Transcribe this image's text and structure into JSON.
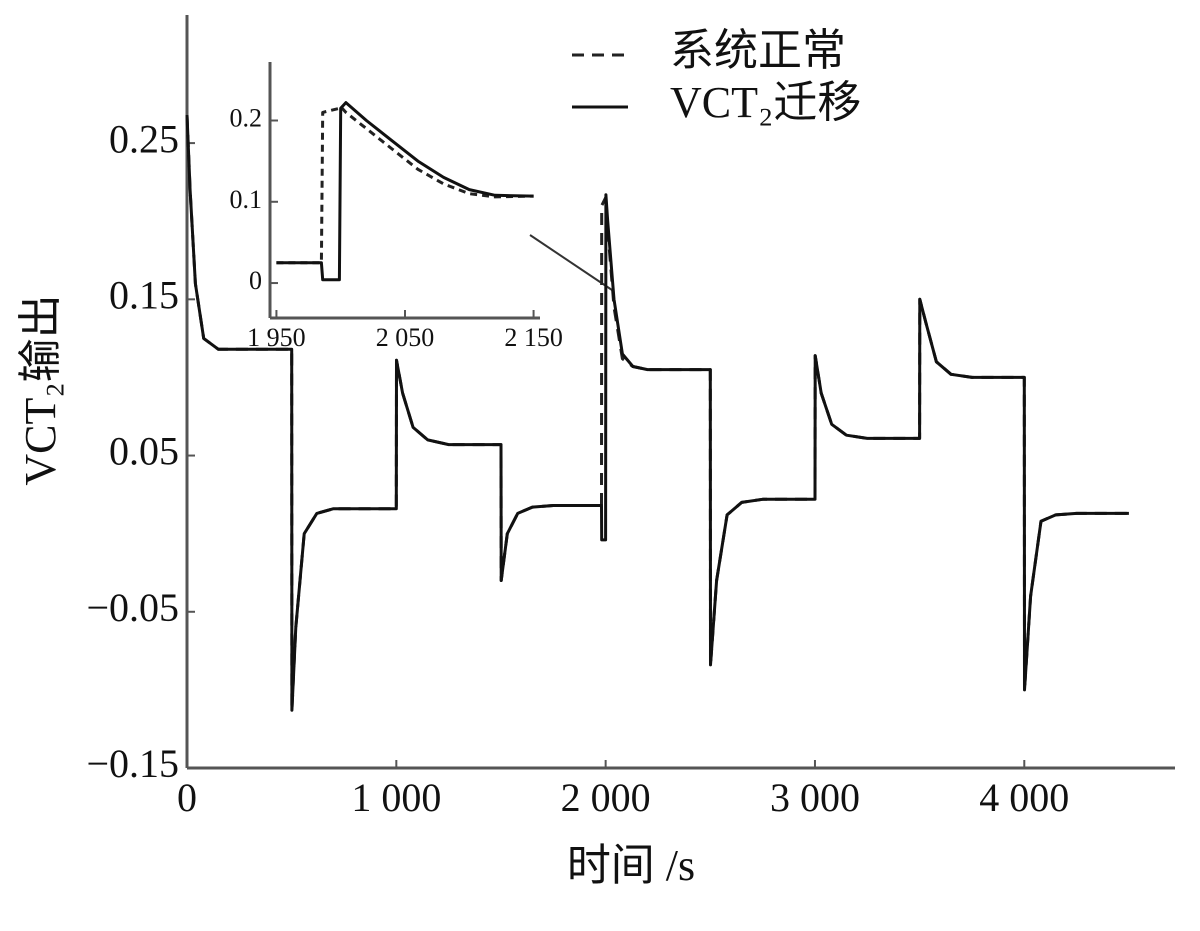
{
  "chart_data": [
    {
      "type": "line",
      "x_label": "时间 /s",
      "y_label": "VCT₂输出",
      "legend": "upper right",
      "xlim": [
        0,
        4720
      ],
      "ylim": [
        -0.15,
        0.332
      ],
      "xticks": [
        0,
        {
          "value": 1000,
          "label": "1 000"
        },
        {
          "value": 2000,
          "label": "2 000"
        },
        {
          "value": 3000,
          "label": "3 000"
        },
        {
          "value": 4000,
          "label": "4 000"
        }
      ],
      "yticks": [
        {
          "value": -0.15,
          "label": "−0.15"
        },
        {
          "value": -0.05,
          "label": "−0.05"
        },
        0.05,
        0.15,
        0.25
      ],
      "x": [
        0,
        15,
        40,
        80,
        150,
        500,
        501,
        520,
        560,
        620,
        700,
        1000,
        1001,
        1030,
        1080,
        1150,
        1250,
        1500,
        1501,
        1530,
        1580,
        1650,
        1750,
        1980,
        1981,
        2000,
        2001,
        2010,
        2040,
        2080,
        2130,
        2200,
        2500,
        2501,
        2530,
        2580,
        2650,
        2750,
        3000,
        3001,
        3030,
        3080,
        3150,
        3250,
        3500,
        3501,
        3530,
        3580,
        3650,
        3750,
        4000,
        4001,
        4030,
        4080,
        4150,
        4250,
        4500
      ],
      "series": [
        {
          "name": "系统正常",
          "color": "#222222",
          "style": "dashed",
          "values": [
            0.268,
            0.22,
            0.16,
            0.125,
            0.118,
            0.118,
            -0.113,
            -0.06,
            0.0,
            0.013,
            0.016,
            0.016,
            0.111,
            0.09,
            0.068,
            0.06,
            0.057,
            0.057,
            -0.03,
            0.0,
            0.013,
            0.017,
            0.018,
            0.018,
            0.21,
            0.215,
            0.214,
            0.195,
            0.145,
            0.112,
            0.107,
            0.105,
            0.105,
            -0.084,
            -0.03,
            0.012,
            0.02,
            0.022,
            0.022,
            0.114,
            0.09,
            0.07,
            0.063,
            0.061,
            0.061,
            0.15,
            0.135,
            0.11,
            0.102,
            0.1,
            0.1,
            -0.1,
            -0.04,
            0.008,
            0.012,
            0.013,
            0.013
          ]
        },
        {
          "name": "VCT₂迁移",
          "color": "#111111",
          "style": "solid",
          "values": [
            0.268,
            0.22,
            0.16,
            0.125,
            0.118,
            0.118,
            -0.113,
            -0.06,
            0.0,
            0.013,
            0.016,
            0.016,
            0.111,
            0.09,
            0.068,
            0.06,
            0.057,
            0.057,
            -0.03,
            0.0,
            0.013,
            0.017,
            0.018,
            0.018,
            -0.004,
            -0.004,
            0.217,
            0.2,
            0.15,
            0.115,
            0.107,
            0.105,
            0.105,
            -0.084,
            -0.03,
            0.012,
            0.02,
            0.022,
            0.022,
            0.114,
            0.09,
            0.07,
            0.063,
            0.061,
            0.061,
            0.15,
            0.135,
            0.11,
            0.102,
            0.1,
            0.1,
            -0.1,
            -0.04,
            0.008,
            0.012,
            0.013,
            0.013
          ]
        }
      ]
    },
    {
      "type": "line",
      "xlim": [
        1945,
        2155
      ],
      "ylim": [
        -0.043,
        0.272
      ],
      "xticks": [
        {
          "value": 1950,
          "label": "1 950"
        },
        {
          "value": 2050,
          "label": "2 050"
        },
        {
          "value": 2150,
          "label": "2 150"
        }
      ],
      "yticks": [
        0,
        0.1,
        0.2
      ],
      "x": [
        1950,
        1985,
        1986,
        1999,
        2000,
        2004,
        2020,
        2040,
        2060,
        2080,
        2100,
        2120,
        2150
      ],
      "series": [
        {
          "color": "#222222",
          "style": "dashed",
          "values": [
            0.025,
            0.025,
            0.21,
            0.215,
            0.217,
            0.21,
            0.19,
            0.165,
            0.14,
            0.122,
            0.11,
            0.106,
            0.107
          ]
        },
        {
          "color": "#111111",
          "style": "solid",
          "values": [
            0.025,
            0.025,
            0.004,
            0.004,
            0.215,
            0.222,
            0.2,
            0.175,
            0.15,
            0.13,
            0.115,
            0.108,
            0.107
          ]
        }
      ]
    }
  ]
}
